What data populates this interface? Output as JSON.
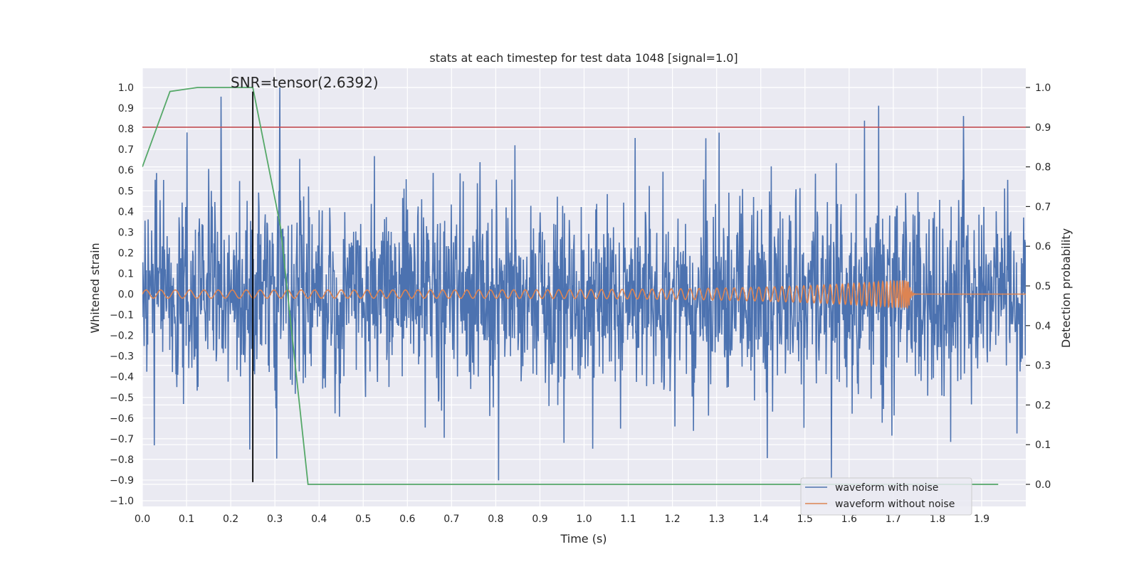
{
  "chart_data": {
    "type": "line",
    "title": "stats at each timestep for test data 1048 [signal=1.0]",
    "xlabel": "Time (s)",
    "ylabel_left": "Whitened strain",
    "ylabel_right": "Detection probability",
    "xlim": [
      0.0,
      2.0
    ],
    "ylim_left": [
      -1.0,
      1.0
    ],
    "ylim_right": [
      -0.05,
      1.05
    ],
    "x_ticks": [
      "0.0",
      "0.1",
      "0.2",
      "0.3",
      "0.4",
      "0.5",
      "0.6",
      "0.7",
      "0.8",
      "0.9",
      "1.0",
      "1.1",
      "1.2",
      "1.3",
      "1.4",
      "1.5",
      "1.6",
      "1.7",
      "1.8",
      "1.9"
    ],
    "y_ticks_left": [
      "1.0",
      "0.9",
      "0.8",
      "0.7",
      "0.6",
      "0.5",
      "0.4",
      "0.3",
      "0.2",
      "0.1",
      "0.0",
      "−0.1",
      "−0.2",
      "−0.3",
      "−0.4",
      "−0.5",
      "−0.6",
      "−0.7",
      "−0.8",
      "−0.9",
      "−1.0"
    ],
    "y_ticks_right": [
      "1.0",
      "0.9",
      "0.8",
      "0.7",
      "0.6",
      "0.5",
      "0.4",
      "0.3",
      "0.2",
      "0.1",
      "0.0"
    ],
    "annotation": "SNR=tensor(2.6392)",
    "grid": true,
    "legend_position": "lower-right",
    "series": [
      {
        "name": "waveform with noise",
        "axis": "left",
        "color": "#4c72b0",
        "kind": "noise",
        "x_range": [
          0.0,
          2.0
        ],
        "approx_std": 0.27,
        "y_min": -0.91,
        "y_max": 1.0
      },
      {
        "name": "waveform without noise",
        "axis": "left",
        "color": "#dd8452",
        "kind": "chirp",
        "x_range": [
          0.0,
          2.0
        ],
        "merger_time": 1.735,
        "amplitude_start": 0.02,
        "amplitude_peak": 0.07
      },
      {
        "name": "detection probability",
        "axis": "right",
        "color": "#55a868",
        "x": [
          0.0,
          0.0625,
          0.125,
          0.1875,
          0.25,
          0.3125,
          0.375,
          0.4375,
          1.9375
        ],
        "values": [
          0.8,
          0.99,
          1.0,
          1.0,
          1.0,
          0.65,
          0.0,
          0.0,
          0.0
        ]
      }
    ],
    "threshold_line": {
      "axis": "right",
      "value": 0.9,
      "color": "#c44e52"
    },
    "marker_line": {
      "x": 0.25,
      "y_from": -0.91,
      "y_to": 0.98,
      "color": "#000000"
    }
  }
}
